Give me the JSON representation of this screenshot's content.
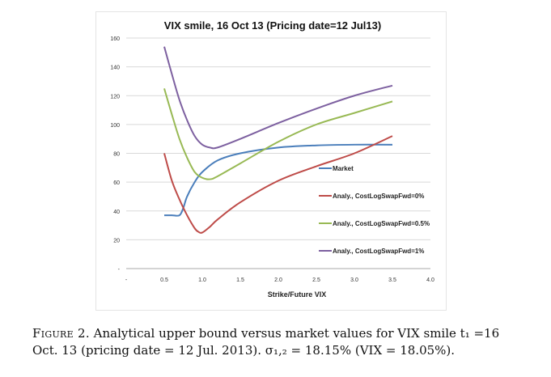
{
  "chart_data": {
    "type": "line",
    "title": "VIX smile, 16 Oct 13 (Pricing date=12 Jul13)",
    "xlabel": "Strike/Future VIX",
    "ylabel": "",
    "xlim": [
      0,
      4.0
    ],
    "ylim": [
      0,
      160
    ],
    "x_ticks": [
      "-",
      "0.5",
      "1.0",
      "1.5",
      "2.0",
      "2.5",
      "3.0",
      "3.5",
      "4.0"
    ],
    "y_ticks": [
      "-",
      "20",
      "40",
      "60",
      "80",
      "100",
      "120",
      "140",
      "160"
    ],
    "grid": "horizontal",
    "legend_position": "right",
    "series": [
      {
        "name": "Market",
        "color": "#4a7ebb",
        "points": [
          [
            0.5,
            37
          ],
          [
            0.6,
            37
          ],
          [
            0.7,
            37
          ],
          [
            0.75,
            42
          ],
          [
            0.8,
            50
          ],
          [
            0.9,
            60
          ],
          [
            1.0,
            67
          ],
          [
            1.2,
            75
          ],
          [
            1.5,
            80
          ],
          [
            2.0,
            84
          ],
          [
            2.5,
            85.5
          ],
          [
            3.0,
            86
          ],
          [
            3.5,
            86
          ]
        ]
      },
      {
        "name": "Analy., CostLogSwapFwd=0%",
        "color": "#be4b48",
        "points": [
          [
            0.5,
            80
          ],
          [
            0.6,
            61
          ],
          [
            0.7,
            48
          ],
          [
            0.8,
            37
          ],
          [
            0.9,
            28
          ],
          [
            0.95,
            25.5
          ],
          [
            1.0,
            25
          ],
          [
            1.1,
            29
          ],
          [
            1.2,
            34
          ],
          [
            1.5,
            46
          ],
          [
            2.0,
            61
          ],
          [
            2.5,
            71
          ],
          [
            3.0,
            80
          ],
          [
            3.5,
            92
          ]
        ]
      },
      {
        "name": "Analy., CostLogSwapFwd=0.5%",
        "color": "#98b954",
        "points": [
          [
            0.5,
            125
          ],
          [
            0.6,
            107
          ],
          [
            0.7,
            90
          ],
          [
            0.8,
            77
          ],
          [
            0.9,
            67
          ],
          [
            1.0,
            63
          ],
          [
            1.1,
            62
          ],
          [
            1.2,
            64
          ],
          [
            1.5,
            73
          ],
          [
            2.0,
            88
          ],
          [
            2.5,
            100
          ],
          [
            3.0,
            108
          ],
          [
            3.5,
            116
          ]
        ]
      },
      {
        "name": "Analy., CostLogSwapFwd=1%",
        "color": "#7d60a0",
        "points": [
          [
            0.5,
            154
          ],
          [
            0.6,
            135
          ],
          [
            0.7,
            117
          ],
          [
            0.8,
            103
          ],
          [
            0.9,
            92
          ],
          [
            1.0,
            86
          ],
          [
            1.1,
            84
          ],
          [
            1.2,
            84
          ],
          [
            1.5,
            90
          ],
          [
            2.0,
            101
          ],
          [
            2.5,
            111
          ],
          [
            3.0,
            120
          ],
          [
            3.5,
            127
          ]
        ]
      }
    ]
  },
  "caption": {
    "label": "Figure 2.",
    "text": " Analytical upper bound versus market values for VIX smile t₁ =16 Oct. 13 (pricing date = 12 Jul. 2013). σ₁,₂ = 18.15% (VIX = 18.05%)."
  }
}
